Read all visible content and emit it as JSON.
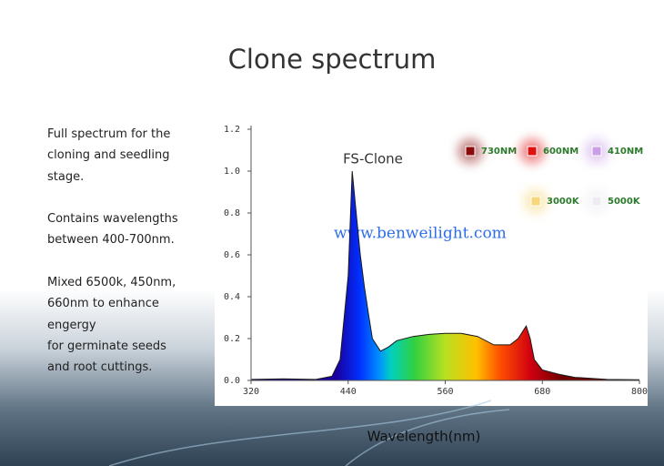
{
  "title": "Clone spectrum",
  "description": {
    "paragraphs": [
      [
        "Full spectrum for the",
        "cloning and seedling",
        "stage."
      ],
      [
        "Contains wavelengths",
        "between 400-700nm."
      ],
      [
        "Mixed 6500k, 450nm,",
        "660nm to enhance",
        "engergy",
        "for germinate seeds",
        "and root cuttings."
      ]
    ]
  },
  "chart_data": {
    "type": "area",
    "watermark": "www.benweilight.com",
    "x_label": "Wavelength(nm)",
    "x": [
      320,
      360,
      400,
      420,
      430,
      440,
      445,
      450,
      455,
      460,
      465,
      470,
      480,
      490,
      500,
      520,
      540,
      560,
      580,
      600,
      620,
      640,
      650,
      660,
      665,
      670,
      680,
      700,
      720,
      760,
      800
    ],
    "series": [
      {
        "name": "FS-Clone",
        "color": "#1a1a1a",
        "values": [
          0.005,
          0.008,
          0.005,
          0.02,
          0.1,
          0.5,
          1.0,
          0.8,
          0.6,
          0.45,
          0.32,
          0.2,
          0.14,
          0.16,
          0.19,
          0.21,
          0.22,
          0.225,
          0.225,
          0.21,
          0.17,
          0.17,
          0.2,
          0.26,
          0.2,
          0.1,
          0.05,
          0.03,
          0.015,
          0.005,
          0.003
        ]
      }
    ],
    "xlim": [
      320,
      800
    ],
    "xticks": [
      320,
      440,
      560,
      680,
      800
    ],
    "ylim": [
      0,
      1.2
    ],
    "yticks": [
      {
        "value": 0,
        "label": "0.0"
      },
      0.2,
      0.4,
      0.6,
      0.8,
      {
        "value": 1,
        "label": "1.0"
      },
      1.2
    ],
    "legend_items": [
      {
        "label": "730NM",
        "color": "#8b0a0a"
      },
      {
        "label": "600NM",
        "color": "#e01010"
      },
      {
        "label": "410NM",
        "color": "#c9a0e8"
      },
      {
        "label": "3000K",
        "color": "#f7d77a"
      },
      {
        "label": "5000K",
        "color": "#ececf2"
      }
    ]
  }
}
